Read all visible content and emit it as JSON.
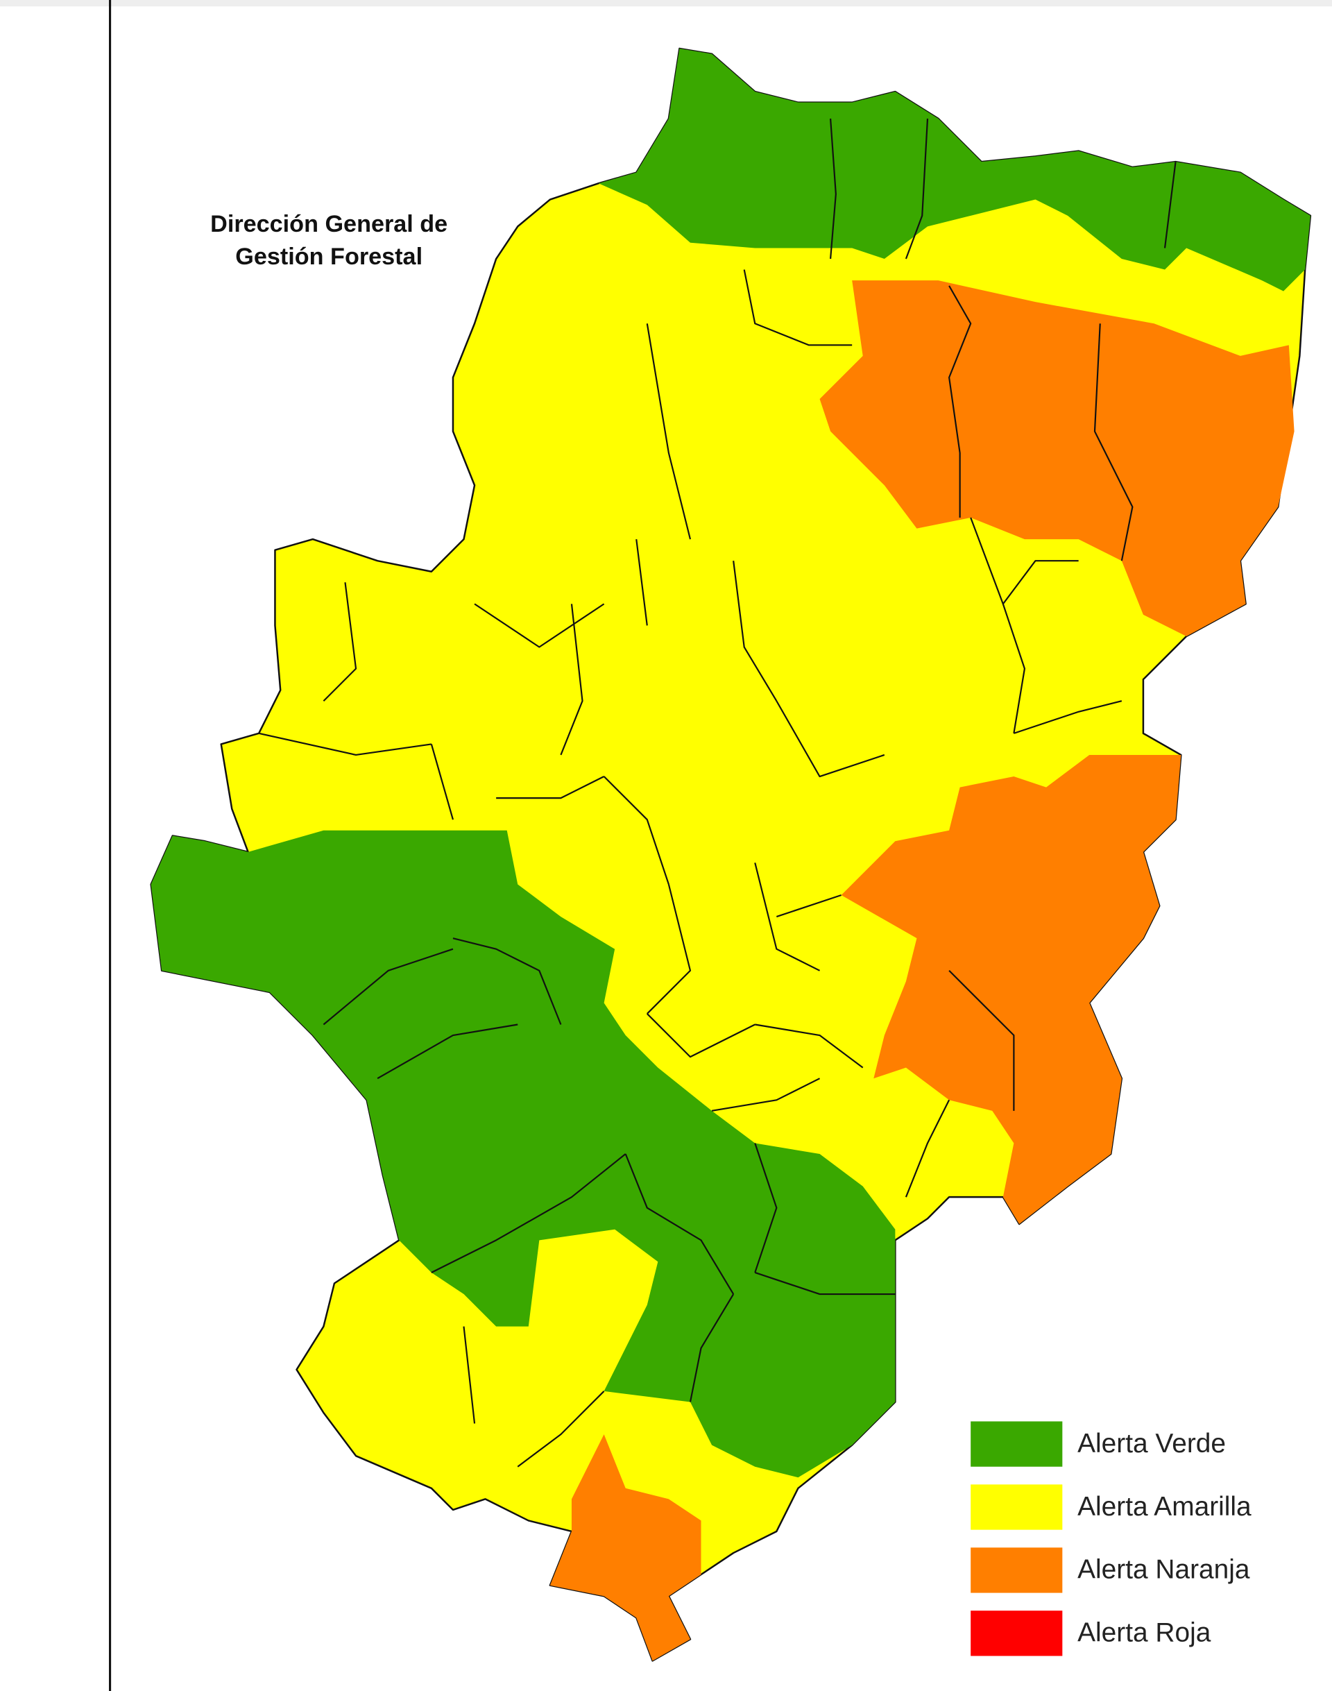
{
  "header": {
    "title_lines": [
      "Dirección General de",
      "Gestión Forestal"
    ]
  },
  "legend": {
    "items": [
      {
        "label": "Alerta Verde",
        "color": "#3aa800"
      },
      {
        "label": "Alerta Amarilla",
        "color": "#ffff00"
      },
      {
        "label": "Alerta Naranja",
        "color": "#ff7f00"
      },
      {
        "label": "Alerta Roja",
        "color": "#ff0000"
      }
    ]
  }
}
